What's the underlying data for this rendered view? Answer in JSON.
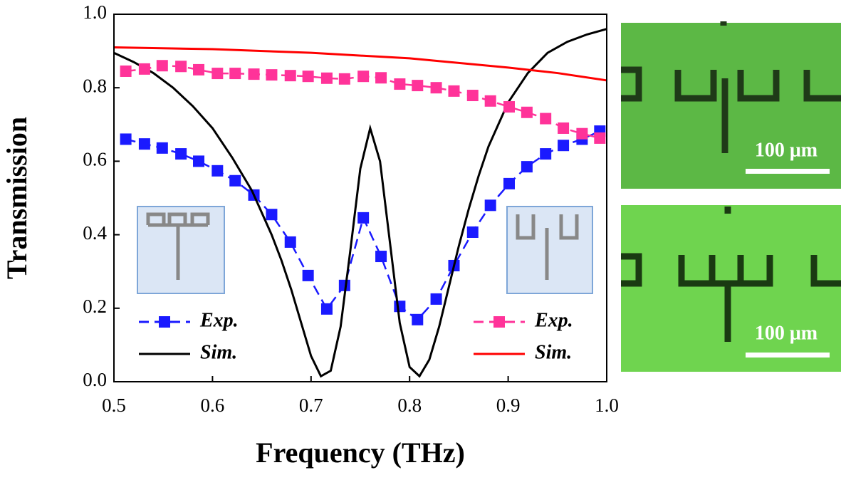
{
  "chart_data": {
    "type": "line",
    "xlabel": "Frequency (THz)",
    "ylabel": "Transmission",
    "xlim": [
      0.5,
      1.0
    ],
    "xticks": [
      0.5,
      0.6,
      0.7,
      0.8,
      0.9,
      {
        "value": 1.0,
        "label": "1.0"
      }
    ],
    "ylim": [
      0,
      1.0
    ],
    "yticks": [
      {
        "value": 0,
        "label": "0.0"
      },
      0.2,
      0.4,
      0.6,
      0.8,
      {
        "value": 1.0,
        "label": "1.0"
      }
    ],
    "series": [
      {
        "name": "Exp.",
        "color": "#1a1aff",
        "marker": "square",
        "linestyle": "dashed",
        "x": [
          0.512,
          0.531,
          0.549,
          0.568,
          0.586,
          0.605,
          0.623,
          0.642,
          0.66,
          0.679,
          0.697,
          0.716,
          0.734,
          0.753,
          0.771,
          0.79,
          0.808,
          0.827,
          0.845,
          0.864,
          0.882,
          0.901,
          0.919,
          0.938,
          0.956,
          0.975,
          0.993
        ],
        "values": [
          0.66,
          0.647,
          0.636,
          0.62,
          0.6,
          0.574,
          0.547,
          0.508,
          0.455,
          0.38,
          0.289,
          0.198,
          0.262,
          0.446,
          0.341,
          0.205,
          0.169,
          0.225,
          0.316,
          0.407,
          0.48,
          0.539,
          0.585,
          0.62,
          0.643,
          0.66,
          0.682
        ]
      },
      {
        "name": "Sim.",
        "color": "#000000",
        "linestyle": "solid",
        "x": [
          0.5,
          0.52,
          0.54,
          0.56,
          0.58,
          0.6,
          0.62,
          0.64,
          0.65,
          0.66,
          0.67,
          0.68,
          0.69,
          0.7,
          0.71,
          0.72,
          0.73,
          0.74,
          0.75,
          0.76,
          0.77,
          0.78,
          0.79,
          0.8,
          0.81,
          0.82,
          0.83,
          0.84,
          0.85,
          0.86,
          0.87,
          0.88,
          0.9,
          0.92,
          0.94,
          0.96,
          0.98,
          1.0
        ],
        "values": [
          0.895,
          0.87,
          0.84,
          0.8,
          0.75,
          0.69,
          0.61,
          0.52,
          0.46,
          0.4,
          0.33,
          0.25,
          0.16,
          0.07,
          0.015,
          0.03,
          0.15,
          0.36,
          0.58,
          0.69,
          0.6,
          0.38,
          0.16,
          0.04,
          0.015,
          0.06,
          0.15,
          0.26,
          0.37,
          0.47,
          0.56,
          0.64,
          0.76,
          0.84,
          0.895,
          0.925,
          0.945,
          0.96
        ]
      },
      {
        "name": "Exp.",
        "color": "#ff3399",
        "marker": "square",
        "linestyle": "dashed",
        "x": [
          0.512,
          0.531,
          0.549,
          0.568,
          0.586,
          0.605,
          0.623,
          0.642,
          0.66,
          0.679,
          0.697,
          0.716,
          0.734,
          0.753,
          0.771,
          0.79,
          0.808,
          0.827,
          0.845,
          0.864,
          0.882,
          0.901,
          0.919,
          0.938,
          0.956,
          0.975,
          0.993
        ],
        "values": [
          0.845,
          0.851,
          0.86,
          0.858,
          0.849,
          0.839,
          0.839,
          0.837,
          0.835,
          0.833,
          0.831,
          0.826,
          0.824,
          0.831,
          0.827,
          0.81,
          0.806,
          0.8,
          0.791,
          0.779,
          0.764,
          0.748,
          0.733,
          0.716,
          0.69,
          0.675,
          0.663
        ]
      },
      {
        "name": "Sim.",
        "color": "#ff0000",
        "linestyle": "solid",
        "x": [
          0.5,
          0.6,
          0.7,
          0.8,
          0.9,
          0.95,
          1.0
        ],
        "values": [
          0.91,
          0.905,
          0.895,
          0.88,
          0.855,
          0.84,
          0.82
        ]
      }
    ]
  },
  "images": [
    {
      "scale_label": "100 μm"
    },
    {
      "scale_label": "100 μm"
    }
  ]
}
